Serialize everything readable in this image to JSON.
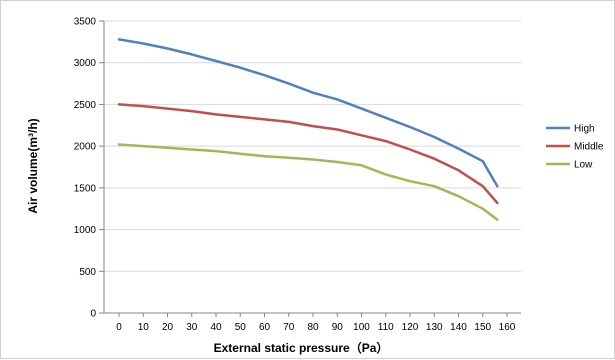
{
  "chart_data": {
    "type": "line",
    "title": "",
    "xlabel": "External static pressure（Pa）",
    "ylabel": "Air  volume(m³/h)",
    "x": [
      0,
      10,
      20,
      30,
      40,
      50,
      60,
      70,
      80,
      90,
      100,
      110,
      120,
      130,
      140,
      150,
      160
    ],
    "xticks": [
      "0",
      "10",
      "20",
      "30",
      "40",
      "50",
      "60",
      "70",
      "80",
      "90",
      "100",
      "110",
      "120",
      "130",
      "140",
      "150",
      "160"
    ],
    "xlim": [
      0,
      160
    ],
    "ylim": [
      0,
      3500
    ],
    "yticks": [
      "0",
      "500",
      "1000",
      "1500",
      "2000",
      "2500",
      "3000",
      "3500"
    ],
    "grid": {
      "y": true,
      "x": false
    },
    "legend": "right",
    "series": [
      {
        "name": "High",
        "color": "#4F81BD",
        "points": [
          [
            0,
            3280
          ],
          [
            10,
            3230
          ],
          [
            20,
            3170
          ],
          [
            30,
            3100
          ],
          [
            40,
            3020
          ],
          [
            50,
            2940
          ],
          [
            60,
            2850
          ],
          [
            70,
            2750
          ],
          [
            80,
            2640
          ],
          [
            90,
            2560
          ],
          [
            100,
            2450
          ],
          [
            110,
            2340
          ],
          [
            120,
            2230
          ],
          [
            130,
            2110
          ],
          [
            140,
            1970
          ],
          [
            150,
            1820
          ],
          [
            156,
            1520
          ]
        ]
      },
      {
        "name": "Middle",
        "color": "#C0504D",
        "points": [
          [
            0,
            2500
          ],
          [
            10,
            2480
          ],
          [
            20,
            2450
          ],
          [
            30,
            2420
          ],
          [
            40,
            2380
          ],
          [
            50,
            2350
          ],
          [
            60,
            2320
          ],
          [
            70,
            2290
          ],
          [
            80,
            2240
          ],
          [
            90,
            2200
          ],
          [
            100,
            2130
          ],
          [
            110,
            2060
          ],
          [
            120,
            1960
          ],
          [
            130,
            1850
          ],
          [
            140,
            1710
          ],
          [
            150,
            1520
          ],
          [
            156,
            1320
          ]
        ]
      },
      {
        "name": "Low",
        "color": "#9BBB59",
        "points": [
          [
            0,
            2020
          ],
          [
            10,
            2000
          ],
          [
            20,
            1980
          ],
          [
            30,
            1960
          ],
          [
            40,
            1940
          ],
          [
            50,
            1910
          ],
          [
            60,
            1880
          ],
          [
            70,
            1860
          ],
          [
            80,
            1840
          ],
          [
            90,
            1810
          ],
          [
            100,
            1770
          ],
          [
            110,
            1660
          ],
          [
            120,
            1580
          ],
          [
            130,
            1520
          ],
          [
            140,
            1400
          ],
          [
            150,
            1250
          ],
          [
            156,
            1120
          ]
        ]
      }
    ]
  }
}
